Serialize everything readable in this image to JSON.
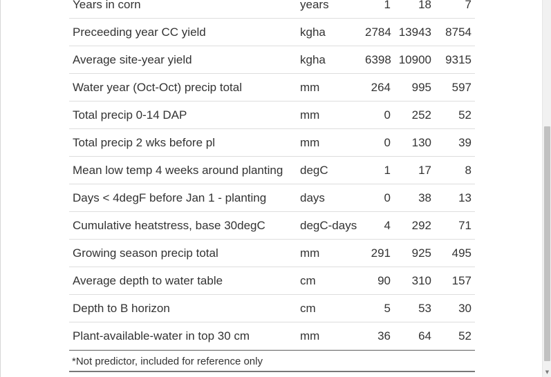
{
  "table": {
    "rows": [
      {
        "variable": "Years in corn",
        "unit": "years",
        "min": "1",
        "max": "18",
        "avg": "7"
      },
      {
        "variable": "Preceeding year CC yield",
        "unit": "kgha",
        "min": "2784",
        "max": "13943",
        "avg": "8754"
      },
      {
        "variable": "Average site-year yield",
        "unit": "kgha",
        "min": "6398",
        "max": "10900",
        "avg": "9315"
      },
      {
        "variable": "Water year (Oct-Oct) precip total",
        "unit": "mm",
        "min": "264",
        "max": "995",
        "avg": "597"
      },
      {
        "variable": "Total precip 0-14 DAP",
        "unit": "mm",
        "min": "0",
        "max": "252",
        "avg": "52"
      },
      {
        "variable": "Total precip 2 wks before pl",
        "unit": "mm",
        "min": "0",
        "max": "130",
        "avg": "39"
      },
      {
        "variable": "Mean low temp 4 weeks around planting",
        "unit": "degC",
        "min": "1",
        "max": "17",
        "avg": "8"
      },
      {
        "variable": "Days < 4degF before Jan 1 - planting",
        "unit": "days",
        "min": "0",
        "max": "38",
        "avg": "13"
      },
      {
        "variable": "Cumulative heatstress, base 30degC",
        "unit": "degC-days",
        "min": "4",
        "max": "292",
        "avg": "71"
      },
      {
        "variable": "Growing season precip total",
        "unit": "mm",
        "min": "291",
        "max": "925",
        "avg": "495"
      },
      {
        "variable": "Average depth to water table",
        "unit": "cm",
        "min": "90",
        "max": "310",
        "avg": "157"
      },
      {
        "variable": "Depth to B horizon",
        "unit": "cm",
        "min": "5",
        "max": "53",
        "avg": "30"
      },
      {
        "variable": "Plant-available-water in top 30 cm",
        "unit": "mm",
        "min": "36",
        "max": "64",
        "avg": "52"
      }
    ],
    "footnote": "*Not predictor, included for reference only"
  },
  "scrollbar": {
    "position_fraction": 0.62
  }
}
